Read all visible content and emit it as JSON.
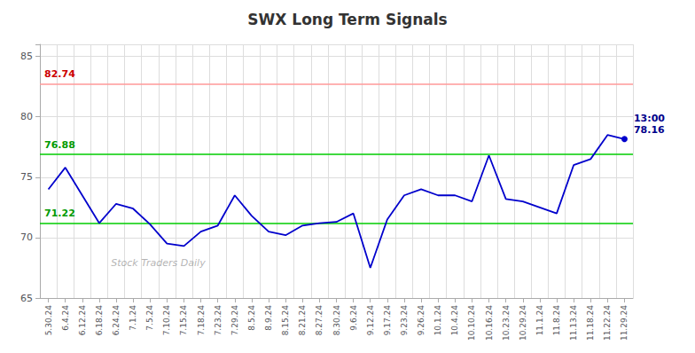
{
  "chart_data": {
    "type": "line",
    "title": "SWX Long Term Signals",
    "categories": [
      "5.30.24",
      "6.4.24",
      "6.12.24",
      "6.18.24",
      "6.24.24",
      "7.1.24",
      "7.5.24",
      "7.10.24",
      "7.15.24",
      "7.18.24",
      "7.23.24",
      "7.29.24",
      "8.5.24",
      "8.9.24",
      "8.15.24",
      "8.21.24",
      "8.27.24",
      "8.30.24",
      "9.6.24",
      "9.12.24",
      "9.17.24",
      "9.23.24",
      "9.26.24",
      "10.1.24",
      "10.4.24",
      "10.10.24",
      "10.16.24",
      "10.23.24",
      "10.29.24",
      "11.1.24",
      "11.8.24",
      "11.13.24",
      "11.18.24",
      "11.22.24",
      "11.29.24"
    ],
    "values": [
      74.0,
      75.8,
      73.5,
      71.2,
      72.8,
      72.4,
      71.1,
      69.5,
      69.3,
      70.5,
      71.0,
      73.5,
      71.8,
      70.5,
      70.2,
      71.0,
      71.2,
      71.3,
      72.0,
      67.5,
      71.5,
      73.5,
      74.0,
      73.5,
      73.5,
      73.0,
      76.8,
      73.2,
      73.0,
      72.5,
      72.0,
      76.0,
      76.5,
      78.5,
      78.16
    ],
    "color": "#0000cc",
    "ylim": [
      65,
      86
    ],
    "yticks": [
      65,
      70,
      75,
      80,
      85
    ],
    "grid": true,
    "hlines": [
      {
        "value": 82.74,
        "label": "82.74",
        "color": "#ff9999",
        "label_color": "#cc0000"
      },
      {
        "value": 76.88,
        "label": "76.88",
        "color": "#00cc00",
        "label_color": "#009900"
      },
      {
        "value": 71.22,
        "label": "71.22",
        "color": "#00cc00",
        "label_color": "#009900"
      }
    ],
    "annotation": {
      "text": "13:00\n78.16",
      "x": "11.29.24",
      "y": 78.16,
      "color": "#00008B"
    },
    "watermark": "Stock Traders Daily"
  }
}
